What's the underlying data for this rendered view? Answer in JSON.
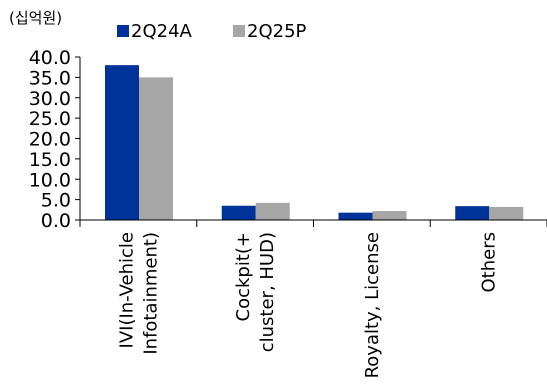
{
  "chart_data": {
    "type": "bar",
    "unit": "(십억원)",
    "categories": [
      [
        "IVI(In-Vehicle",
        "Infotainment)"
      ],
      [
        "Cockpit(+",
        "cluster, HUD)"
      ],
      [
        "Royalty, License"
      ],
      [
        "Others"
      ]
    ],
    "series": [
      {
        "name": "2Q24A",
        "color": "#003399",
        "values": [
          38.0,
          3.5,
          1.8,
          3.4
        ]
      },
      {
        "name": "2Q25P",
        "color": "#A6A6A6",
        "values": [
          35.0,
          4.2,
          2.2,
          3.2
        ]
      }
    ],
    "yticks": [
      "0.0",
      "5.0",
      "10.0",
      "15.0",
      "20.0",
      "25.0",
      "30.0",
      "35.0",
      "40.0"
    ],
    "ylim": [
      0,
      40
    ],
    "legend_position": "top",
    "grid": false,
    "xlabel": "",
    "ylabel": ""
  }
}
